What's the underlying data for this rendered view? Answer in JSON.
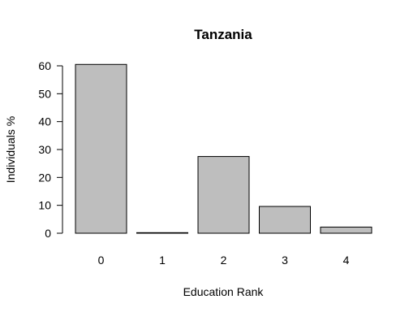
{
  "chart_data": {
    "type": "bar",
    "title": "Tanzania",
    "xlabel": "Education Rank",
    "ylabel": "Individuals %",
    "categories": [
      "0",
      "1",
      "2",
      "3",
      "4"
    ],
    "values": [
      60.5,
      0.2,
      27.5,
      9.6,
      2.2
    ],
    "ylim": [
      0,
      60
    ],
    "yticks": [
      0,
      10,
      20,
      30,
      40,
      50,
      60
    ],
    "bar_color": "#bebebe",
    "bar_edge_color": "#000000",
    "grid": false,
    "legend": "none"
  }
}
